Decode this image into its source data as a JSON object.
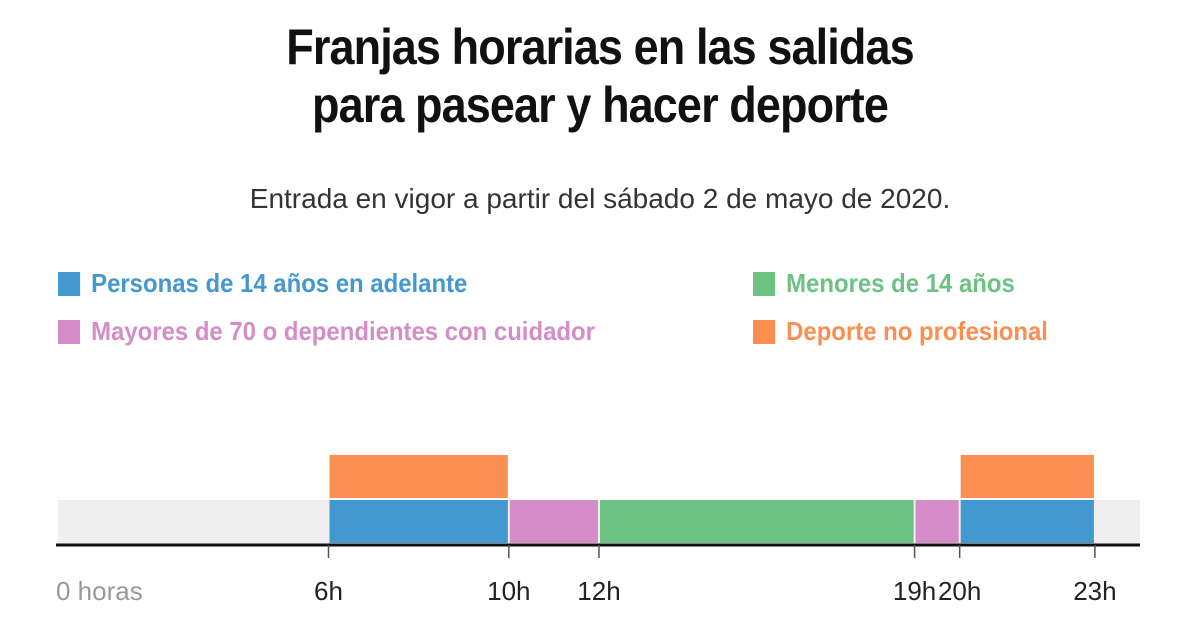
{
  "title_lines": [
    "Franjas horarias en las salidas",
    "para pasear y hacer deporte"
  ],
  "subtitle": "Entrada en vigor a partir del sábado 2 de mayo de 2020.",
  "chart_data": {
    "type": "timeline",
    "xlim": [
      0,
      24
    ],
    "background_color": "#efefef",
    "legend": [
      {
        "name": "Personas de 14 años en adelante",
        "color": "#4398cf"
      },
      {
        "name": "Menores de 14 años",
        "color": "#6cc282"
      },
      {
        "name": "Mayores de 70 o dependientes con cuidador",
        "color": "#d48dc9"
      },
      {
        "name": "Deporte no profesional",
        "color": "#fb8f52"
      }
    ],
    "segments": [
      {
        "series": 0,
        "row": "bottom",
        "start": 6,
        "end": 10
      },
      {
        "series": 2,
        "row": "bottom",
        "start": 10,
        "end": 12
      },
      {
        "series": 1,
        "row": "bottom",
        "start": 12,
        "end": 19
      },
      {
        "series": 2,
        "row": "bottom",
        "start": 19,
        "end": 20
      },
      {
        "series": 0,
        "row": "bottom",
        "start": 20,
        "end": 23
      },
      {
        "series": 3,
        "row": "top",
        "start": 6,
        "end": 10
      },
      {
        "series": 3,
        "row": "top",
        "start": 20,
        "end": 23
      }
    ],
    "ticks": [
      {
        "value": 0,
        "label": "0 horas"
      },
      {
        "value": 6,
        "label": "6h"
      },
      {
        "value": 10,
        "label": "10h"
      },
      {
        "value": 12,
        "label": "12h"
      },
      {
        "value": 19,
        "label": "19h"
      },
      {
        "value": 20,
        "label": "20h"
      },
      {
        "value": 23,
        "label": "23h"
      }
    ]
  }
}
